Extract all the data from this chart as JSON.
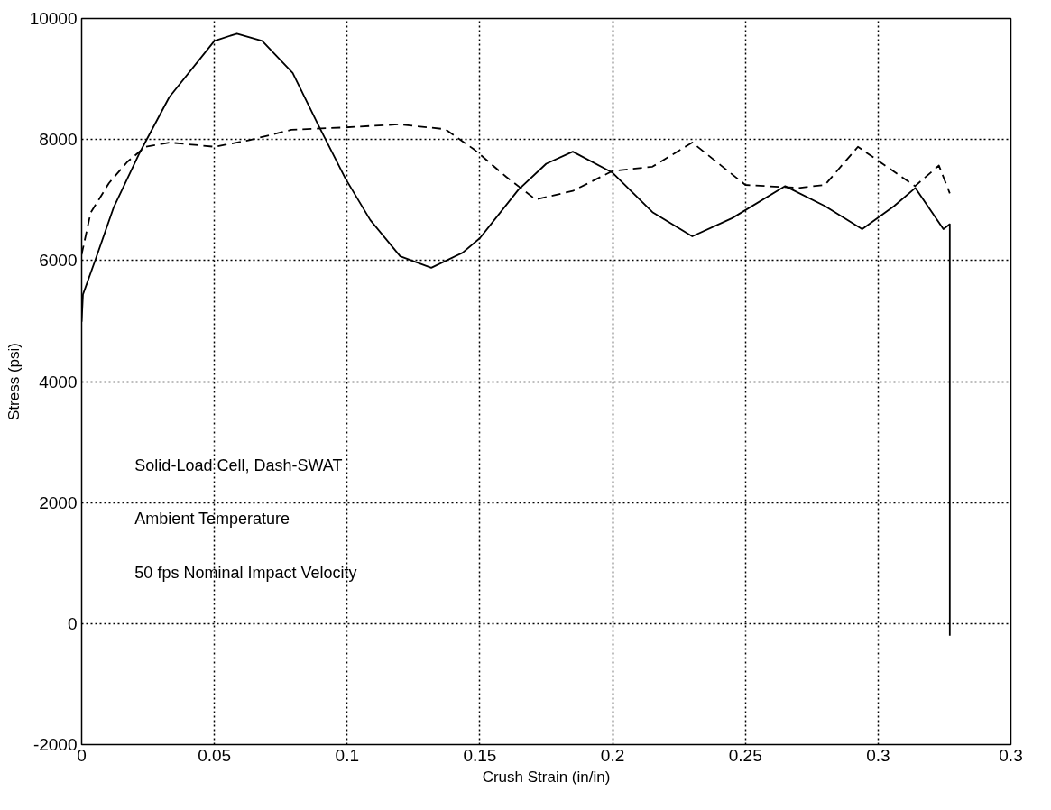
{
  "chart_data": {
    "type": "line",
    "xlabel": "Crush Strain (in/in)",
    "ylabel": "Stress (psi)",
    "xlim": [
      0,
      0.35
    ],
    "ylim": [
      -2000,
      10000
    ],
    "xticks": [
      0,
      0.05,
      0.1,
      0.15,
      0.2,
      0.25,
      0.3,
      {
        "value": 0.35,
        "label": "0.3"
      }
    ],
    "yticks": [
      -2000,
      0,
      2000,
      4000,
      6000,
      8000,
      10000
    ],
    "grid": true,
    "marker": "none",
    "annotations": [
      "Solid-Load Cell, Dash-SWAT",
      "Ambient Temperature",
      "50 fps Nominal Impact Velocity"
    ],
    "series": [
      {
        "color": "#000000",
        "line_style": "solid",
        "x": [
          0,
          0.0005,
          0.005,
          0.012,
          0.0216,
          0.033,
          0.05,
          0.0585,
          0.068,
          0.0795,
          0.089,
          0.0993,
          0.1087,
          0.12,
          0.1317,
          0.1435,
          0.15,
          0.1645,
          0.175,
          0.185,
          0.2,
          0.215,
          0.23,
          0.245,
          0.265,
          0.28,
          0.294,
          0.306,
          0.314,
          0.3246,
          0.327,
          0.327
        ],
        "values": [
          4990,
          5440,
          5990,
          6870,
          7760,
          8700,
          9630,
          9750,
          9630,
          9100,
          8250,
          7360,
          6670,
          6070,
          5880,
          6130,
          6370,
          7170,
          7600,
          7800,
          7450,
          6800,
          6400,
          6700,
          7230,
          6900,
          6520,
          6900,
          7200,
          6520,
          6600,
          -200
        ]
      },
      {
        "color": "#000000",
        "line_style": "dashed",
        "x": [
          0,
          0.0034,
          0.0103,
          0.0172,
          0.024,
          0.0333,
          0.05,
          0.0632,
          0.079,
          0.0994,
          0.1195,
          0.137,
          0.148,
          0.16,
          0.171,
          0.185,
          0.2,
          0.215,
          0.23,
          0.25,
          0.27,
          0.28,
          0.2924,
          0.3139,
          0.3229,
          0.327
        ],
        "values": [
          6100,
          6790,
          7280,
          7630,
          7880,
          7950,
          7880,
          7990,
          8160,
          8200,
          8250,
          8170,
          7830,
          7380,
          7010,
          7150,
          7480,
          7550,
          7950,
          7250,
          7200,
          7250,
          7880,
          7230,
          7570,
          7110
        ]
      }
    ]
  }
}
